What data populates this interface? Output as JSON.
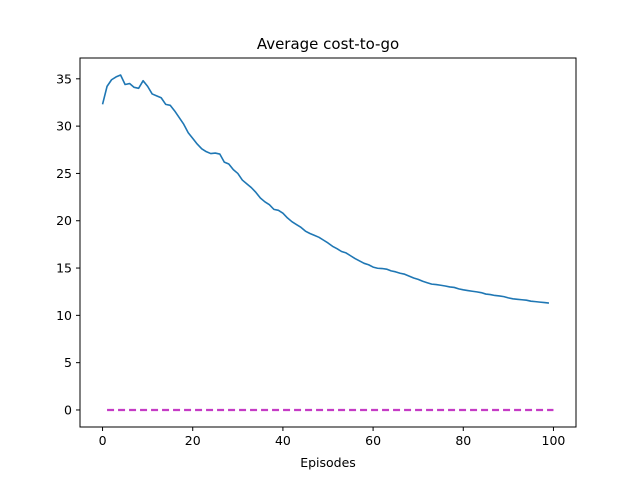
{
  "chart_data": {
    "type": "line",
    "title": "Average cost-to-go",
    "xlabel": "Episodes",
    "ylabel": "",
    "xlim": [
      -5,
      105
    ],
    "ylim": [
      -1.8,
      37.2
    ],
    "xticks": [
      0,
      20,
      40,
      60,
      80,
      100
    ],
    "yticks": [
      0,
      5,
      10,
      15,
      20,
      25,
      30,
      35
    ],
    "grid": false,
    "legend": "none",
    "series": [
      {
        "color": "#1f77b4",
        "style": "solid",
        "x": [
          0,
          1,
          2,
          3,
          4,
          5,
          6,
          7,
          8,
          9,
          10,
          11,
          12,
          13,
          14,
          15,
          16,
          17,
          18,
          19,
          20,
          21,
          22,
          23,
          24,
          25,
          26,
          27,
          28,
          29,
          30,
          31,
          32,
          33,
          34,
          35,
          36,
          37,
          38,
          39,
          40,
          41,
          42,
          43,
          44,
          45,
          46,
          47,
          48,
          49,
          50,
          51,
          52,
          53,
          54,
          55,
          56,
          57,
          58,
          59,
          60,
          61,
          62,
          63,
          64,
          65,
          66,
          67,
          68,
          69,
          70,
          71,
          72,
          73,
          74,
          75,
          76,
          77,
          78,
          79,
          80,
          81,
          82,
          83,
          84,
          85,
          86,
          87,
          88,
          89,
          90,
          91,
          92,
          93,
          94,
          95,
          96,
          97,
          98,
          99
        ],
        "values": [
          32.3,
          34.2,
          34.9,
          35.2,
          35.4,
          34.4,
          34.5,
          34.1,
          34.0,
          34.8,
          34.2,
          33.4,
          33.2,
          33.0,
          32.3,
          32.2,
          31.6,
          30.9,
          30.2,
          29.3,
          28.7,
          28.1,
          27.6,
          27.3,
          27.1,
          27.15,
          27.05,
          26.2,
          26.0,
          25.4,
          25.0,
          24.3,
          23.9,
          23.5,
          23.0,
          22.4,
          22.0,
          21.7,
          21.2,
          21.1,
          20.8,
          20.3,
          19.9,
          19.6,
          19.3,
          18.9,
          18.65,
          18.45,
          18.25,
          17.95,
          17.65,
          17.3,
          17.05,
          16.75,
          16.6,
          16.3,
          16.0,
          15.75,
          15.5,
          15.35,
          15.1,
          14.98,
          14.95,
          14.88,
          14.7,
          14.6,
          14.45,
          14.35,
          14.15,
          13.95,
          13.8,
          13.6,
          13.45,
          13.3,
          13.25,
          13.18,
          13.1,
          13.0,
          12.95,
          12.8,
          12.7,
          12.62,
          12.55,
          12.48,
          12.4,
          12.25,
          12.2,
          12.1,
          12.05,
          11.98,
          11.85,
          11.75,
          11.7,
          11.65,
          11.6,
          11.5,
          11.45,
          11.4,
          11.35,
          11.3
        ]
      },
      {
        "color": "#c53bc5",
        "style": "dashed",
        "x": [
          1,
          100
        ],
        "values": [
          0,
          0
        ]
      }
    ]
  }
}
